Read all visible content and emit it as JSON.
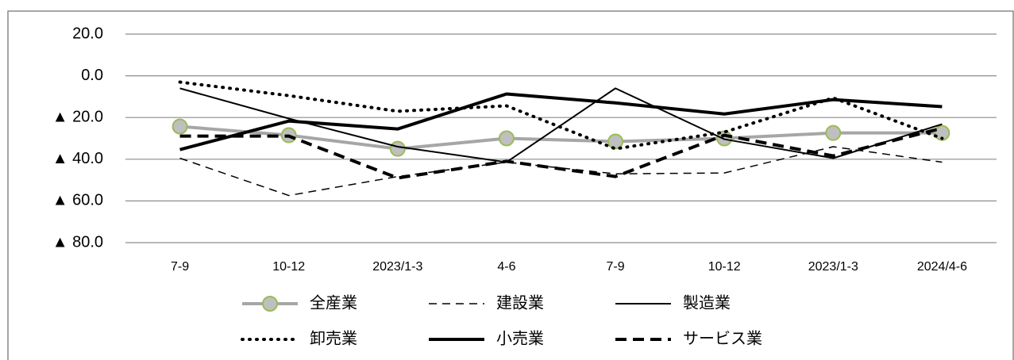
{
  "chart_data": {
    "type": "line",
    "categories": [
      "7-9",
      "10-12",
      "2023/1-3",
      "4-6",
      "7-9",
      "10-12",
      "2023/1-3",
      "2024/4-6"
    ],
    "ylim": [
      -80,
      20
    ],
    "yticks": [
      {
        "value": 20,
        "label": "20.0"
      },
      {
        "value": 0,
        "label": "0.0"
      },
      {
        "value": -20,
        "label": "▲ 20.0"
      },
      {
        "value": -40,
        "label": "▲ 40.0"
      },
      {
        "value": -60,
        "label": "▲ 60.0"
      },
      {
        "value": -80,
        "label": "▲ 80.0"
      }
    ],
    "grid": true,
    "series": [
      {
        "name": "全産業",
        "color": "#a6a6a6",
        "width": 4,
        "dash": "none",
        "marker": "circle",
        "values": [
          -24.3,
          -28.5,
          -35.0,
          -30.0,
          -31.5,
          -30.0,
          -27.4,
          -27.4
        ]
      },
      {
        "name": "建設業",
        "color": "#000000",
        "width": 1.5,
        "dash": "10 7",
        "marker": "none",
        "values": [
          -39.5,
          -57.4,
          -48.3,
          -41.4,
          -47.0,
          -46.6,
          -34.0,
          -41.4
        ]
      },
      {
        "name": "製造業",
        "color": "#000000",
        "width": 2,
        "dash": "none",
        "marker": "none",
        "values": [
          -6.0,
          -20.5,
          -34.0,
          -41.4,
          -6.0,
          -30.4,
          -39.5,
          -23.2
        ]
      },
      {
        "name": "卸売業",
        "color": "#000000",
        "width": 4,
        "dash": "1 8",
        "marker": "none",
        "values": [
          -3.0,
          -9.5,
          -17.0,
          -14.4,
          -35.0,
          -27.0,
          -10.6,
          -30.0
        ]
      },
      {
        "name": "小売業",
        "color": "#000000",
        "width": 4,
        "dash": "none",
        "marker": "none",
        "values": [
          -35.4,
          -21.7,
          -25.5,
          -8.7,
          -13.0,
          -18.3,
          -11.4,
          -14.8
        ]
      },
      {
        "name": "サービス業",
        "color": "#000000",
        "width": 4,
        "dash": "14 8",
        "marker": "none",
        "values": [
          -28.9,
          -28.9,
          -49.0,
          -41.0,
          -48.3,
          -28.5,
          -38.4,
          -25.1
        ]
      }
    ]
  }
}
